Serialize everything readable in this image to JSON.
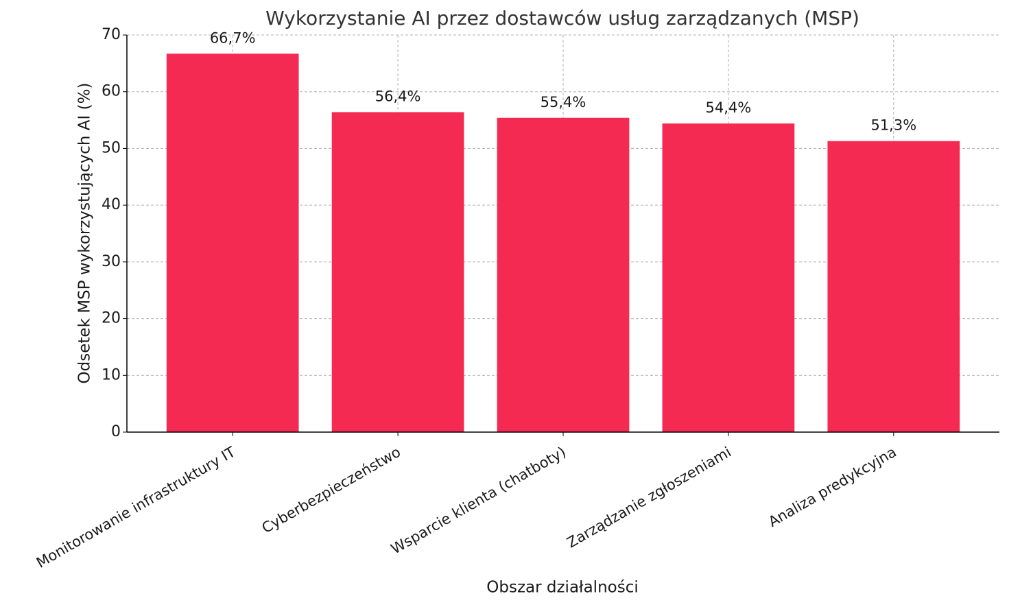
{
  "chart_data": {
    "type": "bar",
    "title": "Wykorzystanie AI przez dostawców usług zarządzanych (MSP)",
    "xlabel": "Obszar działalności",
    "ylabel": "Odsetek MSP wykorzystujących AI (%)",
    "categories": [
      "Monitorowanie infrastruktury IT",
      "Cyberbezpieczeństwo",
      "Wsparcie klienta (chatboty)",
      "Zarządzanie zgłoszeniami",
      "Analiza predykcyjna"
    ],
    "values": [
      66.7,
      56.4,
      55.4,
      54.4,
      51.3
    ],
    "value_labels": [
      "66,7%",
      "56,4%",
      "55,4%",
      "54,4%",
      "51,3%"
    ],
    "color": "#f52a53",
    "ylim": [
      0,
      70
    ],
    "yticks": [
      0,
      10,
      20,
      30,
      40,
      50,
      60,
      70
    ],
    "grid": true
  }
}
